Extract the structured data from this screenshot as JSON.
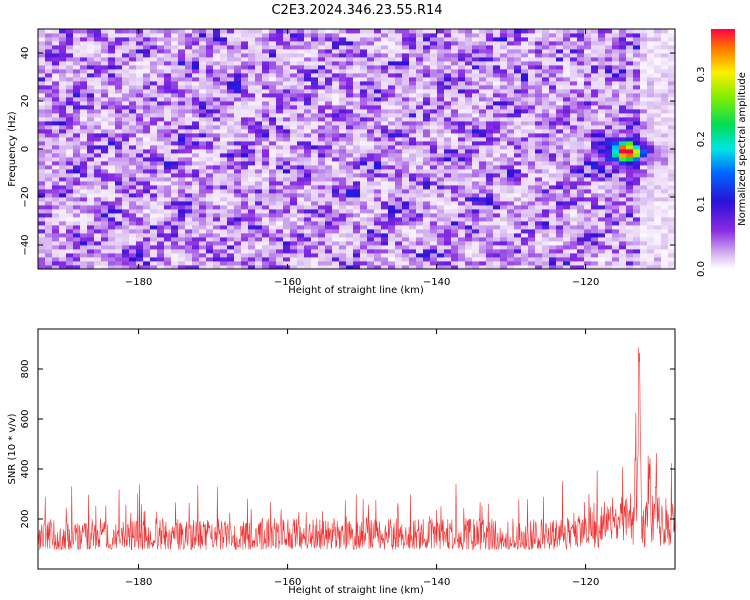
{
  "title": "C2E3.2024.346.23.55.R14",
  "chart_data": [
    {
      "type": "heatmap",
      "xlabel": "Height of straight line (km)",
      "ylabel": "Frequency (Hz)",
      "xlim": [
        -193.5,
        -108
      ],
      "ylim": [
        -50,
        50
      ],
      "x_ticks": [
        -180,
        -160,
        -140,
        -120
      ],
      "y_ticks": [
        -40,
        -20,
        0,
        20,
        40
      ],
      "colorbar": {
        "label": "Normalized spectral amplitude",
        "range": [
          0,
          0.37
        ],
        "ticks": [
          0.0,
          0.1,
          0.2,
          0.3
        ],
        "tick_labels": [
          "0.0",
          "0.1",
          "0.2",
          "0.3"
        ]
      },
      "peak": {
        "x": -114.5,
        "y": -1,
        "value": 0.37
      },
      "background_level": 0.07
    },
    {
      "type": "line",
      "xlabel": "Height of straight line (km)",
      "ylabel": "SNR (10 * v/v)",
      "xlim": [
        -193.5,
        -108
      ],
      "ylim": [
        0,
        960
      ],
      "x_ticks": [
        -180,
        -160,
        -140,
        -120
      ],
      "y_ticks": [
        200,
        400,
        600,
        800
      ],
      "color": "#ee3333",
      "baseline": 140,
      "peak": {
        "x": -112.8,
        "y": 960
      },
      "secondary_peaks": [
        {
          "x": -113.3,
          "y": 620
        },
        {
          "x": -111.5,
          "y": 440
        },
        {
          "x": -110.5,
          "y": 450
        }
      ]
    }
  ]
}
